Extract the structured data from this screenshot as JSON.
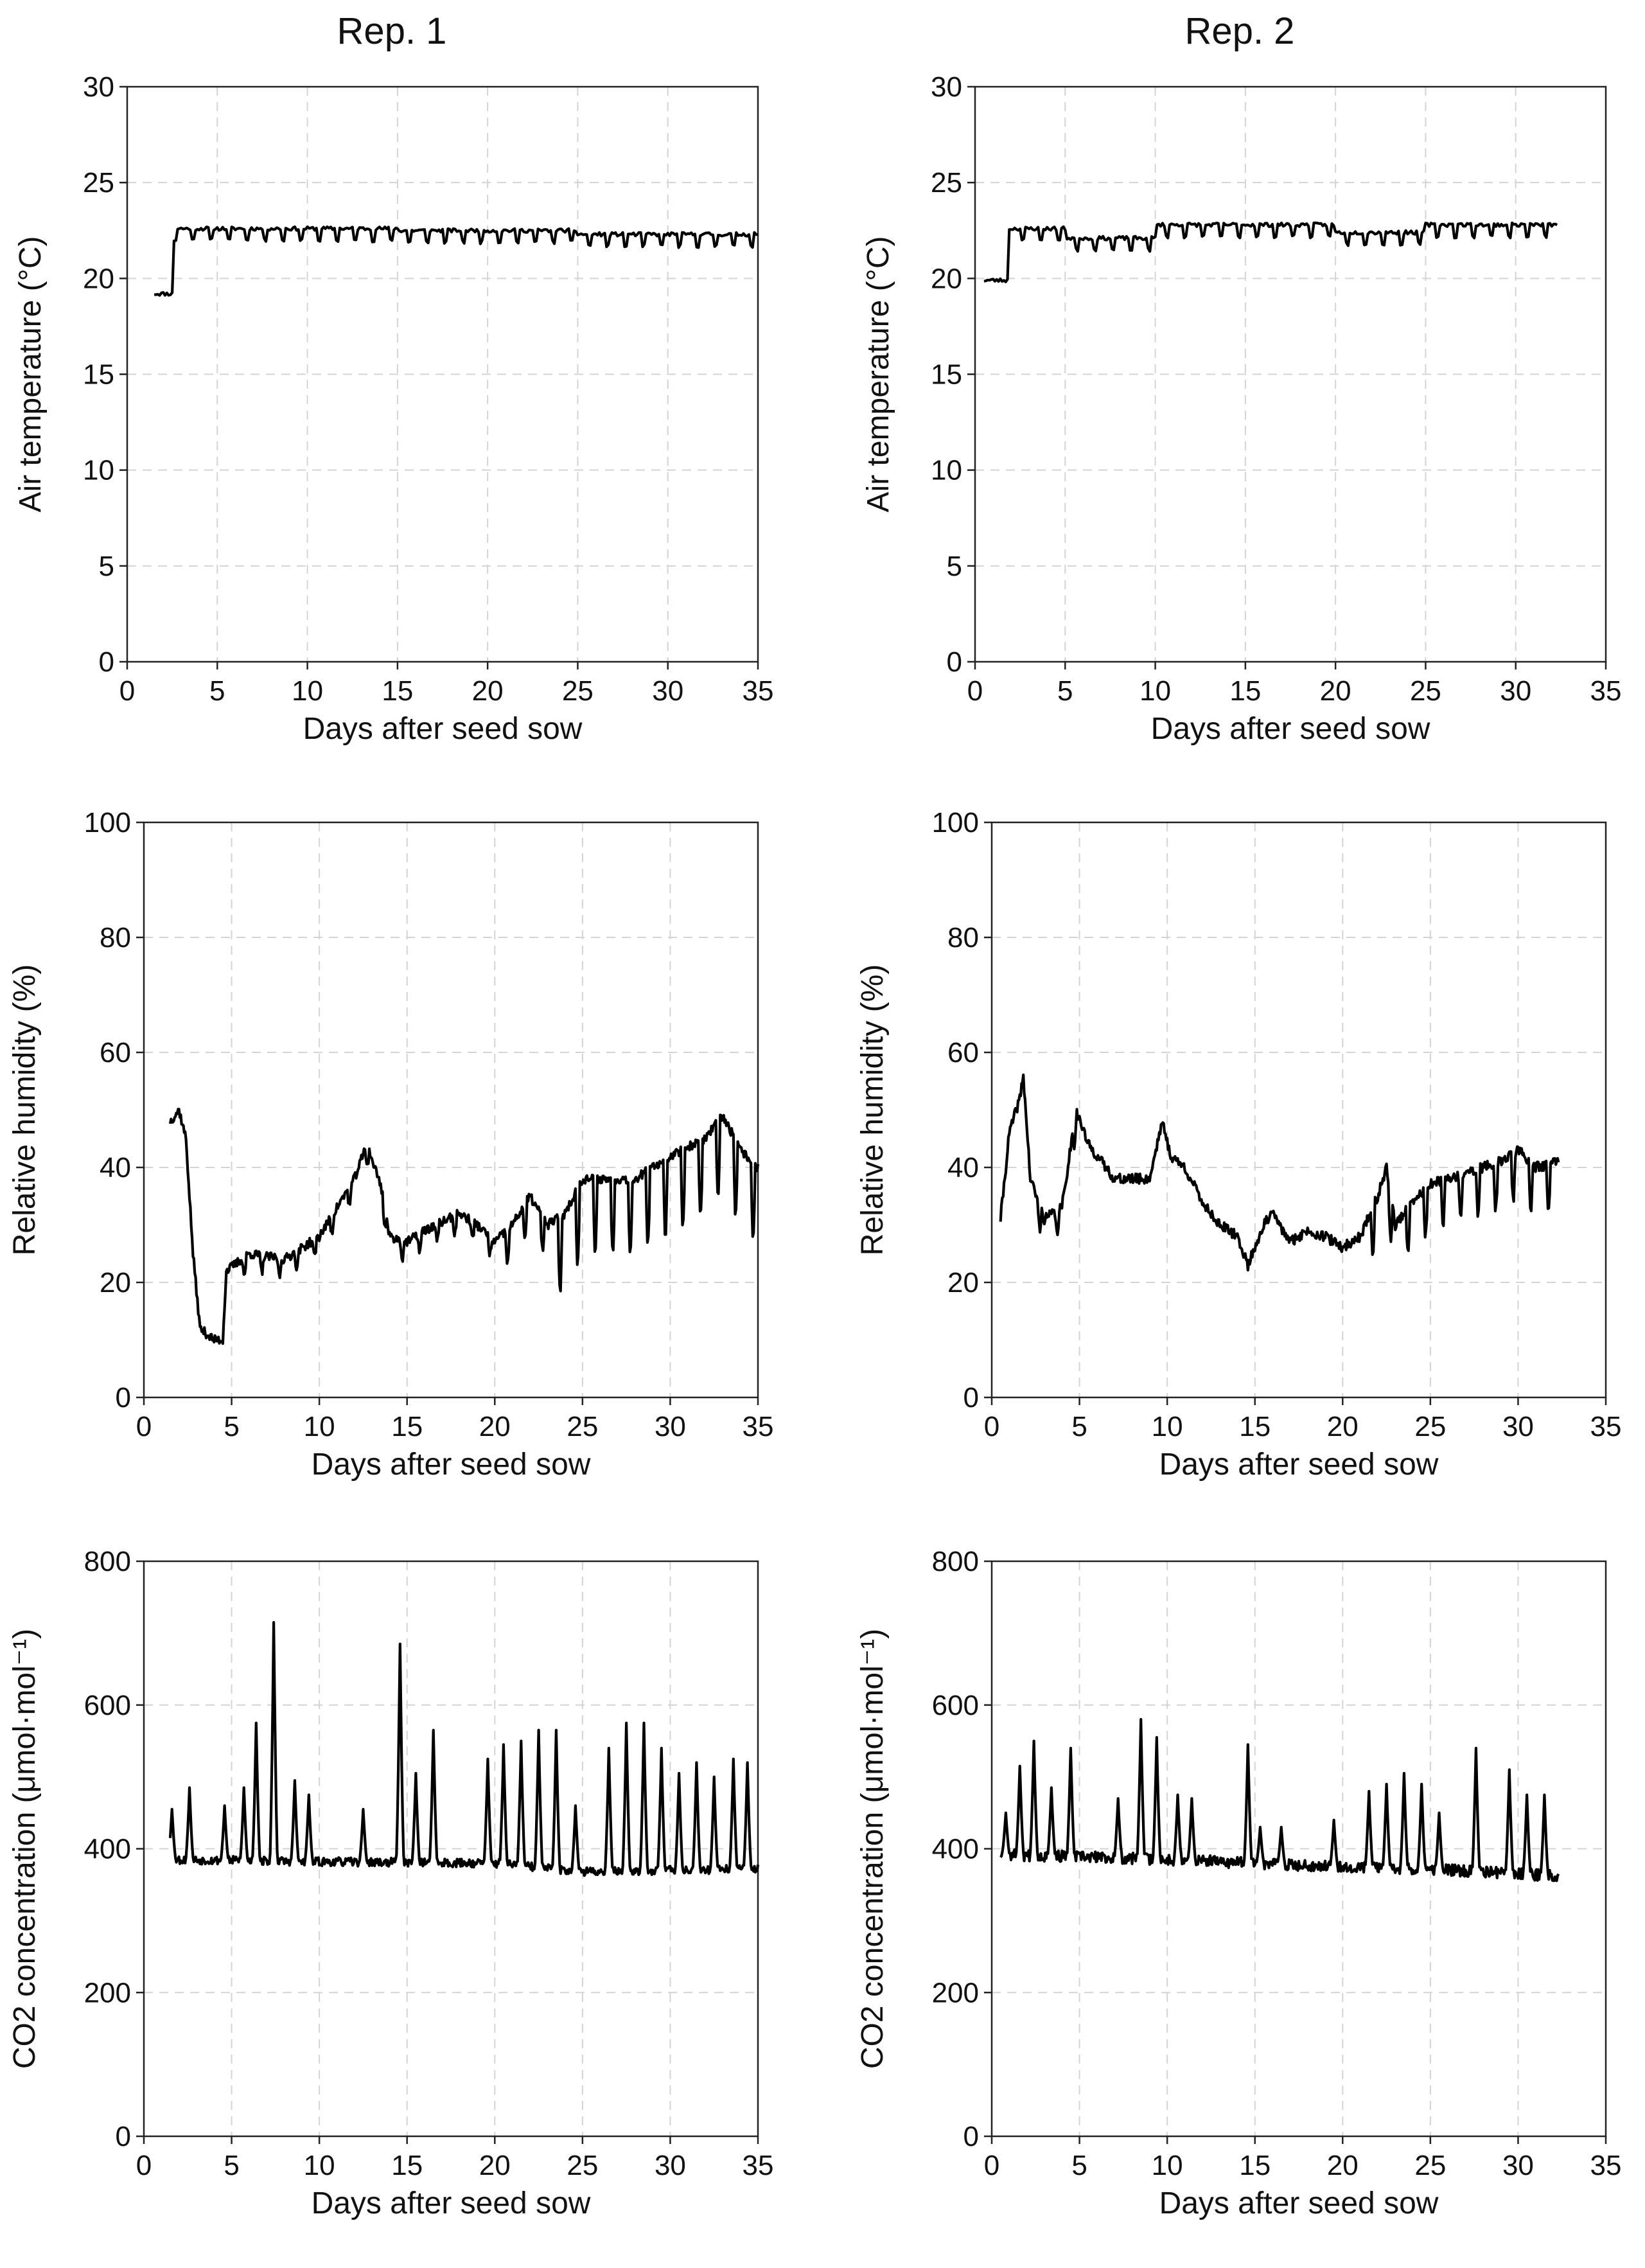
{
  "figure": {
    "column_titles": [
      "Rep. 1",
      "Rep. 2"
    ]
  },
  "chart_data": [
    {
      "id": "temp-rep1",
      "type": "line",
      "title": "Rep. 1",
      "xlabel": "Days after seed sow",
      "ylabel": "Air temperature (°C)",
      "xlim": [
        0,
        35
      ],
      "ylim": [
        0,
        30
      ],
      "xticks": [
        0,
        5,
        10,
        15,
        20,
        25,
        30,
        35
      ],
      "yticks": [
        0,
        5,
        10,
        15,
        20,
        25,
        30
      ],
      "series": [
        {
          "name": "Air temperature",
          "generator": {
            "kind": "temp",
            "start": 1.5,
            "end": 35,
            "step": 0.1,
            "seed": 11,
            "segments": [
              [
                1.5,
                2.6,
                19.2
              ],
              [
                2.6,
                5,
                22.6
              ],
              [
                5,
                15,
                22.6
              ],
              [
                15,
                25,
                22.5
              ],
              [
                25,
                35,
                22.3
              ]
            ],
            "dip": 0.6,
            "noise": 0.1
          }
        }
      ]
    },
    {
      "id": "temp-rep2",
      "type": "line",
      "title": "Rep. 2",
      "xlabel": "Days after seed sow",
      "ylabel": "Air temperature (°C)",
      "xlim": [
        0,
        35
      ],
      "ylim": [
        0,
        30
      ],
      "xticks": [
        0,
        5,
        10,
        15,
        20,
        25,
        30,
        35
      ],
      "yticks": [
        0,
        5,
        10,
        15,
        20,
        25,
        30
      ],
      "series": [
        {
          "name": "Air temperature",
          "generator": {
            "kind": "temp",
            "start": 0.5,
            "end": 32.3,
            "step": 0.1,
            "seed": 23,
            "segments": [
              [
                0.5,
                1.9,
                19.9
              ],
              [
                1.9,
                5,
                22.6
              ],
              [
                5,
                10,
                22.1
              ],
              [
                10,
                20,
                22.8
              ],
              [
                20,
                25,
                22.4
              ],
              [
                25,
                32.3,
                22.8
              ]
            ],
            "dip": 0.6,
            "noise": 0.1
          }
        }
      ]
    },
    {
      "id": "rh-rep1",
      "type": "line",
      "xlabel": "Days after seed sow",
      "ylabel": "Relative humidity (%)",
      "xlim": [
        0,
        35
      ],
      "ylim": [
        0,
        100
      ],
      "xticks": [
        0,
        5,
        10,
        15,
        20,
        25,
        30,
        35
      ],
      "yticks": [
        0,
        20,
        40,
        60,
        80,
        100
      ],
      "series": [
        {
          "name": "Relative humidity",
          "generator": {
            "kind": "rh",
            "start": 1.5,
            "end": 35,
            "step": 0.05,
            "seed": 37,
            "base": [
              [
                1.5,
                48
              ],
              [
                2,
                50
              ],
              [
                2.4,
                45
              ],
              [
                2.8,
                25
              ],
              [
                3.2,
                12
              ],
              [
                4,
                10
              ],
              [
                4.5,
                10
              ],
              [
                4.7,
                22
              ],
              [
                6,
                25
              ],
              [
                8,
                24
              ],
              [
                10,
                28
              ],
              [
                12,
                38
              ],
              [
                12.7,
                44
              ],
              [
                13.5,
                37
              ],
              [
                14,
                28
              ],
              [
                15,
                27
              ],
              [
                16,
                29
              ],
              [
                18,
                32
              ],
              [
                19,
                30
              ],
              [
                20,
                27
              ],
              [
                21,
                30
              ],
              [
                22,
                35
              ],
              [
                23,
                30
              ],
              [
                24,
                32
              ],
              [
                25,
                38
              ],
              [
                26,
                38
              ],
              [
                28,
                38
              ],
              [
                30,
                42
              ],
              [
                32,
                45
              ],
              [
                33,
                49
              ],
              [
                34,
                43
              ],
              [
                35,
                40
              ]
            ],
            "dips": [
              {
                "from": 5,
                "to": 20,
                "amp": 3
              },
              {
                "from": 20,
                "to": 23,
                "amp": 6
              },
              {
                "from": 23,
                "to": 35,
                "amp": 13
              }
            ],
            "noise": 0.8
          }
        }
      ]
    },
    {
      "id": "rh-rep2",
      "type": "line",
      "xlabel": "Days after seed sow",
      "ylabel": "Relative humidity (%)",
      "xlim": [
        0,
        35
      ],
      "ylim": [
        0,
        100
      ],
      "xticks": [
        0,
        5,
        10,
        15,
        20,
        25,
        30,
        35
      ],
      "yticks": [
        0,
        20,
        40,
        60,
        80,
        100
      ],
      "series": [
        {
          "name": "Relative humidity",
          "generator": {
            "kind": "rh",
            "start": 0.5,
            "end": 32.3,
            "step": 0.05,
            "seed": 41,
            "base": [
              [
                0.5,
                31
              ],
              [
                1,
                46
              ],
              [
                1.6,
                52
              ],
              [
                1.8,
                56
              ],
              [
                2.2,
                38
              ],
              [
                3,
                31
              ],
              [
                4,
                33
              ],
              [
                4.8,
                50
              ],
              [
                5.5,
                44
              ],
              [
                6,
                42
              ],
              [
                7,
                38
              ],
              [
                9,
                38
              ],
              [
                9.7,
                48
              ],
              [
                10.2,
                42
              ],
              [
                11,
                40
              ],
              [
                12,
                34
              ],
              [
                13,
                30
              ],
              [
                14,
                28
              ],
              [
                14.6,
                23
              ],
              [
                15.5,
                30
              ],
              [
                16,
                32
              ],
              [
                17,
                27
              ],
              [
                18,
                29
              ],
              [
                19,
                28
              ],
              [
                20,
                26
              ],
              [
                21,
                28
              ],
              [
                22,
                35
              ],
              [
                22.5,
                40
              ],
              [
                23,
                30
              ],
              [
                24,
                34
              ],
              [
                25,
                37
              ],
              [
                27,
                39
              ],
              [
                29,
                41
              ],
              [
                30,
                43
              ],
              [
                31,
                40
              ],
              [
                32.3,
                41
              ]
            ],
            "dips": [
              {
                "from": 2,
                "to": 5,
                "amp": 4
              },
              {
                "from": 21,
                "to": 32.3,
                "amp": 8
              }
            ],
            "noise": 0.9
          }
        }
      ]
    },
    {
      "id": "co2-rep1",
      "type": "line",
      "xlabel": "Days after seed sow",
      "ylabel": "CO2 concentration (μmol·mol⁻¹)",
      "xlim": [
        0,
        35
      ],
      "ylim": [
        0,
        800
      ],
      "xticks": [
        0,
        5,
        10,
        15,
        20,
        25,
        30,
        35
      ],
      "yticks": [
        0,
        200,
        400,
        600,
        800
      ],
      "series": [
        {
          "name": "CO2 concentration",
          "generator": {
            "kind": "co2",
            "start": 1.5,
            "end": 35,
            "step": 0.05,
            "seed": 53,
            "base": [
              [
                1.5,
                385
              ],
              [
                10,
                382
              ],
              [
                20,
                380
              ],
              [
                25,
                368
              ],
              [
                35,
                372
              ]
            ],
            "peaks": [
              [
                1.6,
                455
              ],
              [
                2.6,
                485
              ],
              [
                4.6,
                460
              ],
              [
                5.7,
                485
              ],
              [
                6.4,
                575
              ],
              [
                7.4,
                715
              ],
              [
                8.6,
                495
              ],
              [
                9.4,
                475
              ],
              [
                12.5,
                455
              ],
              [
                14.6,
                685
              ],
              [
                15.5,
                505
              ],
              [
                16.5,
                565
              ],
              [
                19.6,
                525
              ],
              [
                20.5,
                545
              ],
              [
                21.5,
                550
              ],
              [
                22.5,
                565
              ],
              [
                23.5,
                565
              ],
              [
                24.6,
                460
              ],
              [
                26.5,
                540
              ],
              [
                27.5,
                575
              ],
              [
                28.5,
                575
              ],
              [
                29.5,
                540
              ],
              [
                30.5,
                505
              ],
              [
                31.5,
                520
              ],
              [
                32.5,
                500
              ],
              [
                33.6,
                525
              ],
              [
                34.4,
                520
              ]
            ],
            "noise": 6
          }
        }
      ]
    },
    {
      "id": "co2-rep2",
      "type": "line",
      "xlabel": "Days after seed sow",
      "ylabel": "CO2 concentration (μmol·mol⁻¹)",
      "xlim": [
        0,
        35
      ],
      "ylim": [
        0,
        800
      ],
      "xticks": [
        0,
        5,
        10,
        15,
        20,
        25,
        30,
        35
      ],
      "yticks": [
        0,
        200,
        400,
        600,
        800
      ],
      "series": [
        {
          "name": "CO2 concentration",
          "generator": {
            "kind": "co2",
            "start": 0.5,
            "end": 32.3,
            "step": 0.05,
            "seed": 67,
            "base": [
              [
                0.5,
                392
              ],
              [
                10,
                385
              ],
              [
                20,
                375
              ],
              [
                25,
                372
              ],
              [
                32.3,
                362
              ]
            ],
            "peaks": [
              [
                0.8,
                450
              ],
              [
                1.6,
                515
              ],
              [
                2.4,
                550
              ],
              [
                3.4,
                485
              ],
              [
                4.5,
                540
              ],
              [
                7.2,
                470
              ],
              [
                8.5,
                580
              ],
              [
                9.4,
                555
              ],
              [
                10.6,
                475
              ],
              [
                11.4,
                470
              ],
              [
                14.6,
                545
              ],
              [
                15.3,
                430
              ],
              [
                16.5,
                430
              ],
              [
                19.5,
                440
              ],
              [
                21.5,
                480
              ],
              [
                22.5,
                490
              ],
              [
                23.5,
                505
              ],
              [
                24.5,
                490
              ],
              [
                25.5,
                450
              ],
              [
                27.6,
                540
              ],
              [
                29.5,
                510
              ],
              [
                30.5,
                475
              ],
              [
                31.5,
                475
              ]
            ],
            "noise": 8
          }
        }
      ]
    }
  ]
}
